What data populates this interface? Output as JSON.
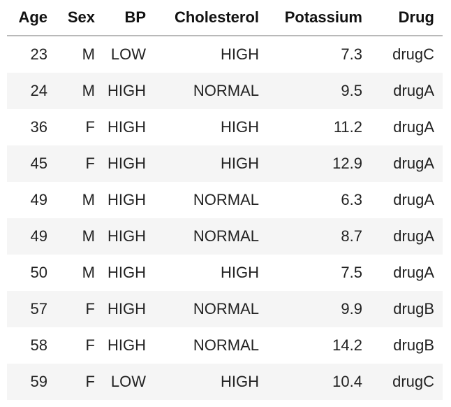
{
  "table": {
    "columns": [
      "Age",
      "Sex",
      "BP",
      "Cholesterol",
      "Potassium",
      "Drug"
    ],
    "rows": [
      [
        "23",
        "M",
        "LOW",
        "HIGH",
        "7.3",
        "drugC"
      ],
      [
        "24",
        "M",
        "HIGH",
        "NORMAL",
        "9.5",
        "drugA"
      ],
      [
        "36",
        "F",
        "HIGH",
        "HIGH",
        "11.2",
        "drugA"
      ],
      [
        "45",
        "F",
        "HIGH",
        "HIGH",
        "12.9",
        "drugA"
      ],
      [
        "49",
        "M",
        "HIGH",
        "NORMAL",
        "6.3",
        "drugA"
      ],
      [
        "49",
        "M",
        "HIGH",
        "NORMAL",
        "8.7",
        "drugA"
      ],
      [
        "50",
        "M",
        "HIGH",
        "HIGH",
        "7.5",
        "drugA"
      ],
      [
        "57",
        "F",
        "HIGH",
        "NORMAL",
        "9.9",
        "drugB"
      ],
      [
        "58",
        "F",
        "HIGH",
        "NORMAL",
        "14.2",
        "drugB"
      ],
      [
        "59",
        "F",
        "LOW",
        "HIGH",
        "10.4",
        "drugC"
      ]
    ]
  }
}
